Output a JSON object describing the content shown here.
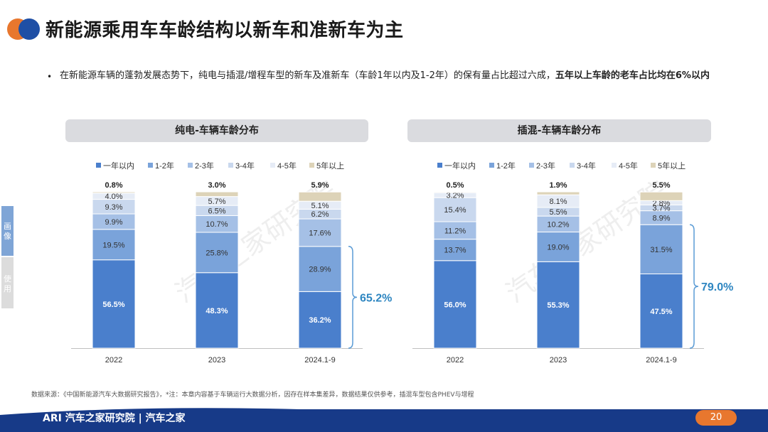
{
  "page": {
    "title": "新能源乘用车车龄结构以新车和准新车为主",
    "intro_part1": "在新能源车辆的蓬勃发展态势下，纯电与插混/增程车型的新车及准新车（车龄1年以内及1-2年）的保有量占比超过六成，",
    "intro_part2": "五年以上车龄的老车占比均在6%以内",
    "bullet": "•",
    "side_tab_1": "画像",
    "side_tab_2": "使用",
    "watermark_1": "汽车之家研究院",
    "watermark_2": "汽车之家研究院",
    "footnote": "数据来源：《中国新能源汽车大数据研究报告》，*注：本章内容基于车辆运行大数据分析，因存在样本集差异，数据结果仅供参考，插混车型包含PHEV与增程",
    "footer_left": "ARI 汽车之家研究院 | 汽车之家",
    "page_number": "20",
    "colors": {
      "logo_orange": "#e8772e",
      "logo_blue": "#1f4fa5",
      "footer_blue": "#173a88",
      "bracket_blue": "#5a9bd5",
      "callout_text": "#2e86c1"
    }
  },
  "chart_data": [
    {
      "type": "bar",
      "stacked": true,
      "title": "纯电-车辆车龄分布",
      "categories": [
        "2022",
        "2023",
        "2024.1-9"
      ],
      "series": [
        {
          "name": "一年以内",
          "color": "#4a7fcc",
          "values": [
            56.5,
            48.3,
            36.2
          ]
        },
        {
          "name": "1-2年",
          "color": "#7aa3da",
          "values": [
            19.5,
            25.8,
            28.9
          ]
        },
        {
          "name": "2-3年",
          "color": "#a5c0e6",
          "values": [
            9.9,
            10.7,
            17.6
          ]
        },
        {
          "name": "3-4年",
          "color": "#c9d8ee",
          "values": [
            9.3,
            6.5,
            6.2
          ]
        },
        {
          "name": "4-5年",
          "color": "#e6ecf6",
          "values": [
            4.0,
            5.7,
            5.1
          ]
        },
        {
          "name": "5年以上",
          "color": "#ddd3b8",
          "values": [
            0.8,
            3.0,
            5.9
          ]
        }
      ],
      "callout": "65.2%",
      "ylim": [
        0,
        100
      ]
    },
    {
      "type": "bar",
      "stacked": true,
      "title": "插混-车辆车龄分布",
      "categories": [
        "2022",
        "2023",
        "2024.1-9"
      ],
      "series": [
        {
          "name": "一年以内",
          "color": "#4a7fcc",
          "values": [
            56.0,
            55.3,
            47.5
          ]
        },
        {
          "name": "1-2年",
          "color": "#7aa3da",
          "values": [
            13.7,
            19.0,
            31.5
          ]
        },
        {
          "name": "2-3年",
          "color": "#a5c0e6",
          "values": [
            11.2,
            10.2,
            8.9
          ]
        },
        {
          "name": "3-4年",
          "color": "#c9d8ee",
          "values": [
            15.4,
            5.5,
            3.7
          ]
        },
        {
          "name": "4-5年",
          "color": "#e6ecf6",
          "values": [
            3.2,
            8.1,
            2.8
          ]
        },
        {
          "name": "5年以上",
          "color": "#ddd3b8",
          "values": [
            0.5,
            1.9,
            5.5
          ]
        }
      ],
      "callout": "79.0%",
      "ylim": [
        0,
        100
      ]
    }
  ]
}
